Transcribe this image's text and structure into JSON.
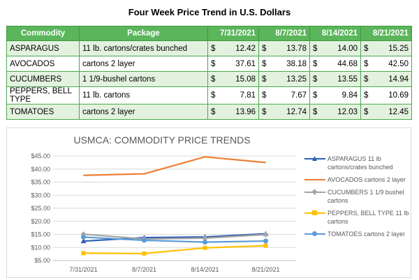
{
  "table": {
    "title": "Four Week Price Trend in U.S. Dollars",
    "headers": [
      "Commodity",
      "Package",
      "7/31/2021",
      "8/7/2021",
      "8/14/2021",
      "8/21/2021"
    ],
    "currency": "$",
    "rows": [
      {
        "commodity": "ASPARAGUS",
        "package": "11 lb. cartons/crates bunched",
        "prices": [
          "12.42",
          "13.78",
          "14.00",
          "15.25"
        ]
      },
      {
        "commodity": "AVOCADOS",
        "package": "cartons 2 layer",
        "prices": [
          "37.61",
          "38.18",
          "44.68",
          "42.50"
        ]
      },
      {
        "commodity": "CUCUMBERS",
        "package": "1 1/9-bushel cartons",
        "prices": [
          "15.08",
          "13.25",
          "13.55",
          "14.94"
        ]
      },
      {
        "commodity": "PEPPERS, BELL TYPE",
        "package": "11 lb. cartons",
        "prices": [
          "7.81",
          "7.67",
          "9.84",
          "10.69"
        ]
      },
      {
        "commodity": "TOMATOES",
        "package": "cartons 2 layer",
        "prices": [
          "13.96",
          "12.74",
          "12.03",
          "12.45"
        ]
      }
    ]
  },
  "chart_data": {
    "type": "line",
    "title": "USMCA: COMMODITY PRICE TRENDS",
    "x": [
      "7/31/2021",
      "8/7/2021",
      "8/14/2021",
      "8/21/2021"
    ],
    "y_ticks": [
      "$5.00",
      "$10.00",
      "$15.00",
      "$20.00",
      "$25.00",
      "$30.00",
      "$35.00",
      "$40.00",
      "$45.00"
    ],
    "ylim": [
      5,
      45
    ],
    "grid": true,
    "legend_position": "right",
    "series": [
      {
        "name": "ASPARAGUS 11 lb cartons/crates bunched",
        "values": [
          12.42,
          13.78,
          14.0,
          15.25
        ],
        "color": "#2e5fb8",
        "marker": "triangle"
      },
      {
        "name": "AVOCADOS cartons 2 layer",
        "values": [
          37.61,
          38.18,
          44.68,
          42.5
        ],
        "color": "#ed7d31",
        "marker": "none"
      },
      {
        "name": "CUCUMBERS 1 1/9 bushel cartons",
        "values": [
          15.08,
          13.25,
          13.55,
          14.94
        ],
        "color": "#a5a5a5",
        "marker": "diamond"
      },
      {
        "name": "PEPPERS, BELL TYPE 11 lb cartons",
        "values": [
          7.81,
          7.67,
          9.84,
          10.69
        ],
        "color": "#ffc000",
        "marker": "square"
      },
      {
        "name": "TOMATOES cartons 2 layer",
        "values": [
          13.96,
          12.74,
          12.03,
          12.45
        ],
        "color": "#5b9bd5",
        "marker": "circle"
      }
    ]
  }
}
